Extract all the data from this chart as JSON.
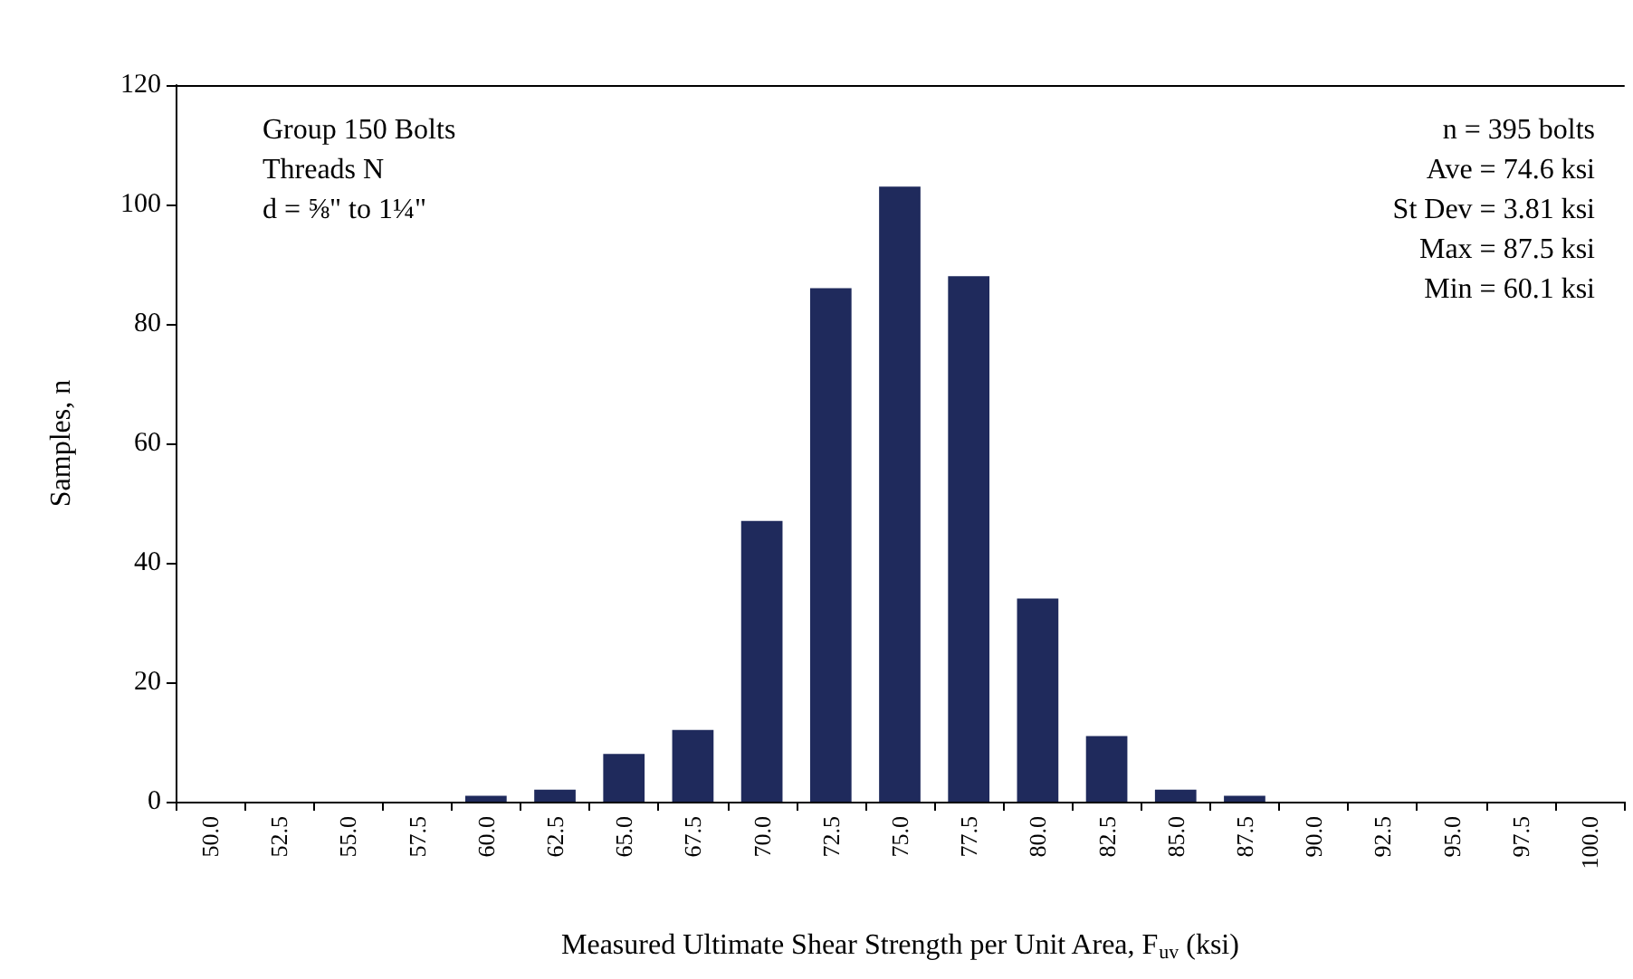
{
  "chart_data": {
    "type": "bar",
    "xlabel": "Measured Ultimate Shear Strength per Unit Area, F$_{uv}$ (ksi)",
    "ylabel": "Samples, n",
    "categories": [
      "50.0",
      "52.5",
      "55.0",
      "57.5",
      "60.0",
      "62.5",
      "65.0",
      "67.5",
      "70.0",
      "72.5",
      "75.0",
      "77.5",
      "80.0",
      "82.5",
      "85.0",
      "87.5",
      "90.0",
      "92.5",
      "95.0",
      "97.5",
      "100.0"
    ],
    "values": [
      0,
      0,
      0,
      0,
      1,
      2,
      8,
      12,
      47,
      86,
      103,
      88,
      34,
      11,
      2,
      1,
      0,
      0,
      0,
      0,
      0
    ],
    "color": "#1f2a5c",
    "ylim": [
      0,
      120
    ],
    "yticks": [
      0,
      20,
      40,
      60,
      80,
      100,
      120
    ],
    "grid": false,
    "annotations": [
      "Group 150 Bolts\nThreads N\nd = ⅝\" to 1¼\"",
      "n = 395 bolts\nAve = 74.6 ksi\nSt Dev = 3.81 ksi\nMax = 87.5 ksi\nMin = 60.1 ksi"
    ]
  }
}
